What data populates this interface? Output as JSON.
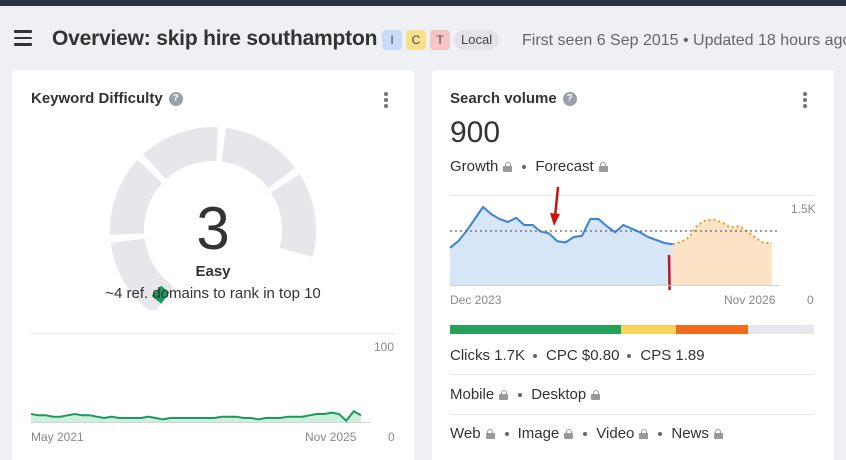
{
  "header": {
    "title": "Overview: skip hire southampton",
    "badges": [
      "I",
      "C",
      "T"
    ],
    "local_badge": "Local",
    "meta": "First seen 6 Sep 2015 • Updated 18 hours ago"
  },
  "keyword_difficulty": {
    "title": "Keyword Difficulty",
    "value": "3",
    "level": "Easy",
    "subtitle": "~4 ref. domains to rank in top 10",
    "gauge_fraction": 0.03,
    "colors": {
      "gauge_track": "#e5e7ea",
      "gauge_fill": "#1a9a5b",
      "trend_line": "#1a9a5b",
      "trend_fill": "#cfeedd"
    },
    "trend": {
      "y_max_label": "100",
      "y_min_label": "0",
      "x_start_label": "May 2021",
      "x_end_label": "Nov 2025",
      "values": [
        6,
        5,
        5,
        4,
        4,
        5,
        6,
        5,
        5,
        4,
        3,
        4,
        3,
        3,
        3,
        3,
        4,
        3,
        2,
        3,
        3,
        3,
        3,
        3,
        3,
        3,
        4,
        4,
        4,
        3,
        3,
        2,
        3,
        3,
        3,
        4,
        4,
        4,
        5,
        6,
        6,
        7,
        6,
        1,
        8,
        5
      ]
    }
  },
  "search_volume": {
    "title": "Search volume",
    "value": "900",
    "growth_label": "Growth",
    "forecast_label": "Forecast",
    "chart": {
      "y_top_label": "1.5K",
      "y_bottom_label": "0",
      "x_start_label": "Dec 2023",
      "x_end_label": "Nov 2026",
      "y_max": 1500,
      "avg": 900,
      "history": [
        620,
        730,
        900,
        1100,
        1300,
        1180,
        1100,
        1050,
        1120,
        1000,
        1000,
        890,
        860,
        730,
        710,
        800,
        820,
        1100,
        1100,
        980,
        880,
        1000,
        940,
        880,
        800,
        750,
        700,
        680
      ],
      "forecast": [
        680,
        720,
        800,
        1000,
        1080,
        1090,
        1040,
        960,
        980,
        900,
        790,
        700,
        700
      ],
      "colors": {
        "history_line": "#3b82d6",
        "history_fill": "#d7e6f7",
        "forecast_line": "#f3941e",
        "forecast_fill": "#fde3c6",
        "avg_line": "#666666",
        "arrows": "#cc1111"
      }
    },
    "intent_bar": [
      {
        "color": "#27a05a",
        "fraction": 0.47
      },
      {
        "color": "#f8d35a",
        "fraction": 0.15
      },
      {
        "color": "#f26b1d",
        "fraction": 0.2
      },
      {
        "color": "#e7e8eb",
        "fraction": 0.18
      }
    ],
    "stats": {
      "clicks": "Clicks 1.7K",
      "cpc": "CPC $0.80",
      "cps": "CPS 1.89"
    },
    "devices": {
      "mobile": "Mobile",
      "desktop": "Desktop"
    },
    "types": {
      "web": "Web",
      "image": "Image",
      "video": "Video",
      "news": "News"
    }
  }
}
